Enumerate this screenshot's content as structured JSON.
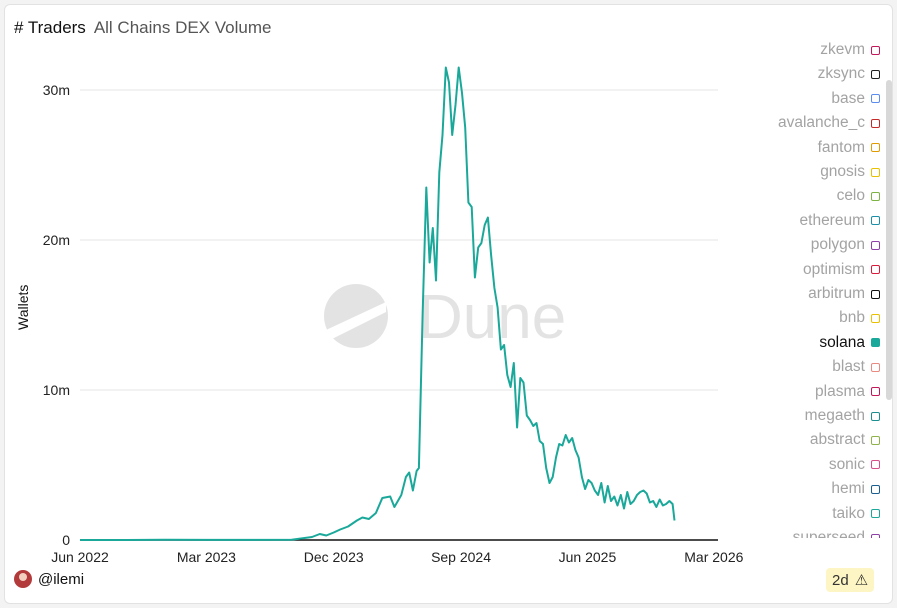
{
  "header": {
    "title": "# Traders",
    "subtitle": "All Chains DEX Volume"
  },
  "footer": {
    "username": "@ilemi",
    "badge": "2d",
    "badge_icon": "warning-triangle-icon"
  },
  "watermark": {
    "text": "Dune"
  },
  "colors": {
    "accent": "#1aa89a",
    "grid": "#e6e6e6",
    "axis": "#111111"
  },
  "legend": [
    {
      "name": "zkevm",
      "color": "#c2185b"
    },
    {
      "name": "zksync",
      "color": "#222222"
    },
    {
      "name": "base",
      "color": "#5b8def"
    },
    {
      "name": "avalanche_c",
      "color": "#c62828"
    },
    {
      "name": "fantom",
      "color": "#e09b00"
    },
    {
      "name": "gnosis",
      "color": "#e8c200"
    },
    {
      "name": "celo",
      "color": "#7cb342"
    },
    {
      "name": "ethereum",
      "color": "#1a8fa8"
    },
    {
      "name": "polygon",
      "color": "#8e3fa8"
    },
    {
      "name": "optimism",
      "color": "#d81b3c"
    },
    {
      "name": "arbitrum",
      "color": "#111111"
    },
    {
      "name": "bnb",
      "color": "#e8c200"
    },
    {
      "name": "solana",
      "color": "#1aa89a",
      "active": true
    },
    {
      "name": "blast",
      "color": "#e88a80"
    },
    {
      "name": "plasma",
      "color": "#c2185b"
    },
    {
      "name": "megaeth",
      "color": "#1a8f8f"
    },
    {
      "name": "abstract",
      "color": "#8fb34a"
    },
    {
      "name": "sonic",
      "color": "#d94f8a"
    },
    {
      "name": "hemi",
      "color": "#1a5f8f"
    },
    {
      "name": "taiko",
      "color": "#1aa89a"
    },
    {
      "name": "superseed",
      "color": "#8e3fa8"
    }
  ],
  "chart_data": {
    "type": "line",
    "title": "# Traders",
    "subtitle": "All Chains DEX Volume",
    "ylabel": "Wallets",
    "xlabel": "",
    "ylim": [
      0,
      32000000
    ],
    "xlim": [
      "2022-06-01",
      "2026-03-10"
    ],
    "y_ticks": [
      {
        "v": 0,
        "label": "0"
      },
      {
        "v": 10000000,
        "label": "10m"
      },
      {
        "v": 20000000,
        "label": "20m"
      },
      {
        "v": 30000000,
        "label": "30m"
      }
    ],
    "x_ticks": [
      {
        "d": "2022-06-01",
        "label": "Jun 2022"
      },
      {
        "d": "2023-03-01",
        "label": "Mar 2023"
      },
      {
        "d": "2023-12-01",
        "label": "Dec 2023"
      },
      {
        "d": "2024-09-01",
        "label": "Sep 2024"
      },
      {
        "d": "2025-06-01",
        "label": "Jun 2025"
      },
      {
        "d": "2026-03-01",
        "label": "Mar 2026"
      }
    ],
    "grid": true,
    "legend_position": "right",
    "series": [
      {
        "name": "solana",
        "points": [
          [
            "2022-06-01",
            0
          ],
          [
            "2022-09-01",
            0
          ],
          [
            "2022-12-01",
            20000
          ],
          [
            "2023-03-01",
            10000
          ],
          [
            "2023-06-01",
            10000
          ],
          [
            "2023-09-01",
            20000
          ],
          [
            "2023-10-15",
            200000
          ],
          [
            "2023-11-01",
            400000
          ],
          [
            "2023-11-15",
            300000
          ],
          [
            "2023-12-01",
            500000
          ],
          [
            "2023-12-15",
            700000
          ],
          [
            "2024-01-01",
            900000
          ],
          [
            "2024-01-20",
            1300000
          ],
          [
            "2024-02-01",
            1500000
          ],
          [
            "2024-02-15",
            1400000
          ],
          [
            "2024-03-01",
            1800000
          ],
          [
            "2024-03-15",
            2800000
          ],
          [
            "2024-04-01",
            2900000
          ],
          [
            "2024-04-10",
            2200000
          ],
          [
            "2024-04-25",
            3000000
          ],
          [
            "2024-05-05",
            4200000
          ],
          [
            "2024-05-12",
            4500000
          ],
          [
            "2024-05-20",
            3300000
          ],
          [
            "2024-05-28",
            4600000
          ],
          [
            "2024-06-02",
            4800000
          ],
          [
            "2024-06-10",
            15000000
          ],
          [
            "2024-06-18",
            23500000
          ],
          [
            "2024-06-25",
            18500000
          ],
          [
            "2024-07-02",
            20800000
          ],
          [
            "2024-07-09",
            17300000
          ],
          [
            "2024-07-16",
            24500000
          ],
          [
            "2024-07-23",
            27000000
          ],
          [
            "2024-07-30",
            31500000
          ],
          [
            "2024-08-06",
            30500000
          ],
          [
            "2024-08-13",
            27000000
          ],
          [
            "2024-08-20",
            29000000
          ],
          [
            "2024-08-27",
            31500000
          ],
          [
            "2024-09-03",
            29800000
          ],
          [
            "2024-09-10",
            27500000
          ],
          [
            "2024-09-17",
            22500000
          ],
          [
            "2024-09-24",
            22200000
          ],
          [
            "2024-10-01",
            17500000
          ],
          [
            "2024-10-08",
            19500000
          ],
          [
            "2024-10-15",
            19800000
          ],
          [
            "2024-10-22",
            21000000
          ],
          [
            "2024-10-29",
            21500000
          ],
          [
            "2024-11-05",
            19000000
          ],
          [
            "2024-11-12",
            16800000
          ],
          [
            "2024-11-19",
            15500000
          ],
          [
            "2024-11-26",
            12700000
          ],
          [
            "2024-12-03",
            13000000
          ],
          [
            "2024-12-10",
            11000000
          ],
          [
            "2024-12-17",
            10200000
          ],
          [
            "2024-12-24",
            11800000
          ],
          [
            "2024-12-31",
            7500000
          ],
          [
            "2025-01-07",
            10800000
          ],
          [
            "2025-01-14",
            10500000
          ],
          [
            "2025-01-21",
            8300000
          ],
          [
            "2025-01-28",
            8000000
          ],
          [
            "2025-02-04",
            7600000
          ],
          [
            "2025-02-11",
            7800000
          ],
          [
            "2025-02-18",
            6600000
          ],
          [
            "2025-02-25",
            6400000
          ],
          [
            "2025-03-04",
            4800000
          ],
          [
            "2025-03-11",
            3800000
          ],
          [
            "2025-03-18",
            4200000
          ],
          [
            "2025-03-25",
            5500000
          ],
          [
            "2025-04-01",
            6400000
          ],
          [
            "2025-04-08",
            6300000
          ],
          [
            "2025-04-15",
            7000000
          ],
          [
            "2025-04-22",
            6500000
          ],
          [
            "2025-04-29",
            6800000
          ],
          [
            "2025-05-06",
            6000000
          ],
          [
            "2025-05-13",
            5500000
          ],
          [
            "2025-05-20",
            4200000
          ],
          [
            "2025-05-27",
            3400000
          ],
          [
            "2025-06-03",
            4000000
          ],
          [
            "2025-06-10",
            3800000
          ],
          [
            "2025-06-17",
            3300000
          ],
          [
            "2025-06-24",
            3000000
          ],
          [
            "2025-07-01",
            3800000
          ],
          [
            "2025-07-08",
            2500000
          ],
          [
            "2025-07-15",
            3600000
          ],
          [
            "2025-07-22",
            2600000
          ],
          [
            "2025-07-29",
            2900000
          ],
          [
            "2025-08-05",
            2300000
          ],
          [
            "2025-08-12",
            3000000
          ],
          [
            "2025-08-19",
            2100000
          ],
          [
            "2025-08-26",
            3200000
          ],
          [
            "2025-09-02",
            2400000
          ],
          [
            "2025-09-09",
            2600000
          ],
          [
            "2025-09-16",
            3000000
          ],
          [
            "2025-09-23",
            3200000
          ],
          [
            "2025-09-30",
            3300000
          ],
          [
            "2025-10-07",
            3100000
          ],
          [
            "2025-10-14",
            2500000
          ],
          [
            "2025-10-21",
            2600000
          ],
          [
            "2025-10-28",
            2200000
          ],
          [
            "2025-11-04",
            2700000
          ],
          [
            "2025-11-11",
            2300000
          ],
          [
            "2025-11-18",
            2400000
          ],
          [
            "2025-11-25",
            2600000
          ],
          [
            "2025-12-02",
            2400000
          ],
          [
            "2025-12-06",
            1300000
          ]
        ]
      }
    ]
  }
}
